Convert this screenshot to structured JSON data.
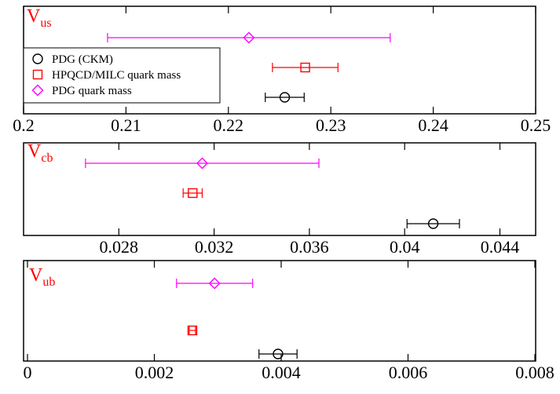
{
  "legend": {
    "placement": "top-left of first panel",
    "entries": [
      {
        "label": "PDG (CKM)",
        "marker": "circle",
        "color": "#000000"
      },
      {
        "label": "HPQCD/MILC quark mass",
        "marker": "square",
        "color": "#ff0000"
      },
      {
        "label": "PDG quark mass",
        "marker": "diamond",
        "color": "#ff00ff"
      }
    ]
  },
  "chart_data": [
    {
      "type": "scatter",
      "title": "",
      "label_main": "V",
      "label_sub": "us",
      "label_color": "#ff0000",
      "xlim": [
        0.2,
        0.25
      ],
      "xticks": [
        0.2,
        0.21,
        0.22,
        0.23,
        0.24,
        0.25
      ],
      "xtick_labels": [
        "0.2",
        "0.21",
        "0.22",
        "0.23",
        "0.24",
        "0.25"
      ],
      "grid": false,
      "series": [
        {
          "name": "PDG quark mass",
          "marker": "diamond",
          "color": "#ff00ff",
          "x": 0.222,
          "xerr_low": 0.0138,
          "xerr_high": 0.0138,
          "row": 3
        },
        {
          "name": "HPQCD/MILC quark mass",
          "marker": "square",
          "color": "#ff0000",
          "x": 0.2275,
          "xerr_low": 0.0032,
          "xerr_high": 0.0032,
          "row": 2
        },
        {
          "name": "PDG (CKM)",
          "marker": "circle",
          "color": "#000000",
          "x": 0.2255,
          "xerr_low": 0.0019,
          "xerr_high": 0.0019,
          "row": 1
        }
      ]
    },
    {
      "type": "scatter",
      "title": "",
      "label_main": "V",
      "label_sub": "cb",
      "label_color": "#ff0000",
      "xlim": [
        0.024,
        0.0455
      ],
      "xticks": [
        0.028,
        0.032,
        0.036,
        0.04,
        0.044
      ],
      "xtick_labels": [
        "0.028",
        "0.032",
        "0.036",
        "0.04",
        "0.044"
      ],
      "grid": false,
      "series": [
        {
          "name": "PDG quark mass",
          "marker": "diamond",
          "color": "#ff00ff",
          "x": 0.0315,
          "xerr_low": 0.0049,
          "xerr_high": 0.0049,
          "row": 3
        },
        {
          "name": "HPQCD/MILC quark mass",
          "marker": "square",
          "color": "#ff0000",
          "x": 0.0311,
          "xerr_low": 0.0004,
          "xerr_high": 0.0004,
          "row": 2
        },
        {
          "name": "PDG (CKM)",
          "marker": "circle",
          "color": "#000000",
          "x": 0.0412,
          "xerr_low": 0.0011,
          "xerr_high": 0.0011,
          "row": 1
        }
      ]
    },
    {
      "type": "scatter",
      "title": "",
      "label_main": "V",
      "label_sub": "ub",
      "label_color": "#ff0000",
      "xlim": [
        0,
        0.008
      ],
      "xticks": [
        0,
        0.002,
        0.004,
        0.006,
        0.008
      ],
      "xtick_labels": [
        "0",
        "0.002",
        "0.004",
        "0.006",
        "0.008"
      ],
      "grid": false,
      "series": [
        {
          "name": "PDG quark mass",
          "marker": "diamond",
          "color": "#ff00ff",
          "x": 0.00295,
          "xerr_low": 0.0006,
          "xerr_high": 0.0006,
          "row": 3
        },
        {
          "name": "HPQCD/MILC quark mass",
          "marker": "square",
          "color": "#ff0000",
          "x": 0.0026,
          "xerr_low": 5e-05,
          "xerr_high": 5e-05,
          "row": 2
        },
        {
          "name": "PDG (CKM)",
          "marker": "circle",
          "color": "#000000",
          "x": 0.00395,
          "xerr_low": 0.0003,
          "xerr_high": 0.0003,
          "row": 1
        }
      ]
    }
  ]
}
